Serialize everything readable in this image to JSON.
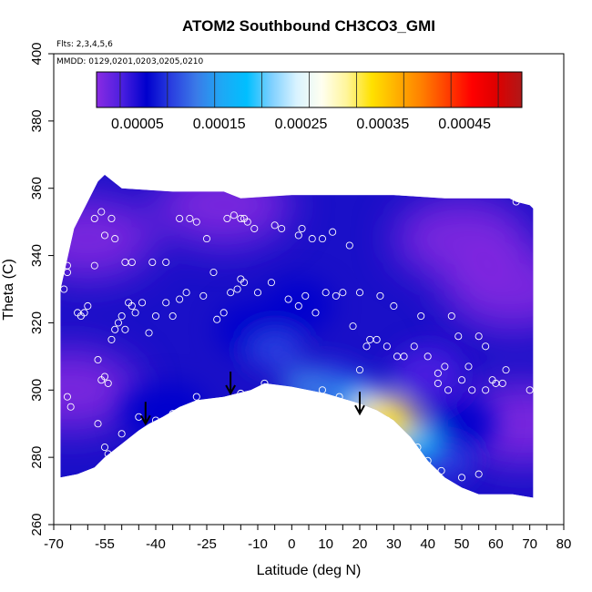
{
  "chart_data": {
    "type": "heatmap",
    "title": "ATOM2 Southbound CH3CO3_GMI",
    "annotations": {
      "flights": "Flts: 2,3,4,5,6",
      "dates": "MMDD: 0129,0201,0203,0205,0210"
    },
    "xlabel": "Latitude (deg N)",
    "ylabel": "Theta (C)",
    "xlim": [
      -70,
      80
    ],
    "ylim": [
      260,
      400
    ],
    "x_ticks": [
      -70,
      -65,
      -60,
      -55,
      -50,
      -45,
      -40,
      -35,
      -30,
      -25,
      -20,
      -15,
      -10,
      -5,
      0,
      5,
      10,
      15,
      20,
      25,
      30,
      35,
      40,
      45,
      50,
      55,
      60,
      65,
      70,
      75,
      80
    ],
    "x_tick_labels": [
      "-70",
      "-55",
      "-40",
      "-25",
      "-10",
      "0",
      "10",
      "20",
      "30",
      "40",
      "50",
      "60",
      "70",
      "80"
    ],
    "x_tick_label_values": [
      -70,
      -55,
      -40,
      -25,
      -10,
      0,
      10,
      20,
      30,
      40,
      50,
      60,
      70,
      80
    ],
    "y_ticks": [
      260,
      280,
      300,
      320,
      340,
      360,
      380,
      400
    ],
    "y_tick_labels": [
      "260",
      "280",
      "300",
      "320",
      "340",
      "360",
      "380",
      "400"
    ],
    "colorbar": {
      "min": 0,
      "max": 0.00052,
      "colors": [
        "#8a2be2",
        "#4b1fe0",
        "#0000cd",
        "#2a3fe0",
        "#3a7be8",
        "#1ea8f5",
        "#00bfff",
        "#7fd0ff",
        "#d9f3ff",
        "#fffff0",
        "#fff59a",
        "#ffe100",
        "#ffb000",
        "#ff7f00",
        "#ff4000",
        "#ff0000",
        "#dd0000",
        "#b01818"
      ],
      "tick_values": [
        5e-05,
        0.00015,
        0.00025,
        0.00035,
        0.00045
      ],
      "tick_labels": [
        "0.00005",
        "0.00015",
        "0.00025",
        "0.00035",
        "0.00045"
      ]
    },
    "field_top": [
      [
        -68,
        330
      ],
      [
        -64,
        348
      ],
      [
        -60,
        356
      ],
      [
        -57,
        362
      ],
      [
        -55,
        364
      ],
      [
        -50,
        360
      ],
      [
        -35,
        359
      ],
      [
        -20,
        359
      ],
      [
        -15,
        357
      ],
      [
        0,
        358
      ],
      [
        15,
        358
      ],
      [
        30,
        358
      ],
      [
        45,
        357
      ],
      [
        60,
        357
      ],
      [
        64,
        357
      ],
      [
        66,
        356
      ],
      [
        70,
        355
      ],
      [
        71,
        354
      ]
    ],
    "field_bottom": [
      [
        71,
        268
      ],
      [
        65,
        269
      ],
      [
        55,
        269
      ],
      [
        50,
        271
      ],
      [
        45,
        274
      ],
      [
        40,
        279
      ],
      [
        35,
        286
      ],
      [
        30,
        291
      ],
      [
        25,
        294
      ],
      [
        20,
        296
      ],
      [
        10,
        299
      ],
      [
        0,
        301
      ],
      [
        -8,
        302
      ],
      [
        -12,
        300
      ],
      [
        -20,
        298
      ],
      [
        -28,
        297
      ],
      [
        -33,
        295
      ],
      [
        -38,
        292
      ],
      [
        -42,
        290
      ],
      [
        -45,
        288
      ],
      [
        -50,
        284
      ],
      [
        -55,
        280
      ],
      [
        -58,
        277
      ],
      [
        -63,
        275
      ],
      [
        -68,
        274
      ]
    ],
    "enhancements": [
      {
        "lat": 29,
        "theta": 291,
        "value": 0.00033
      },
      {
        "lat": 26,
        "theta": 293,
        "value": 0.00026
      },
      {
        "lat": 35,
        "theta": 285,
        "value": 0.00018
      },
      {
        "lat": 20,
        "theta": 296,
        "value": 0.00015
      },
      {
        "lat": 45,
        "theta": 279,
        "value": 0.00011
      },
      {
        "lat": 5,
        "theta": 301,
        "value": 0.00014
      },
      {
        "lat": 12,
        "theta": 300,
        "value": 9e-05
      },
      {
        "lat": -5,
        "theta": 312,
        "value": 0.0001
      },
      {
        "lat": -12,
        "theta": 318,
        "value": 8e-05
      },
      {
        "lat": -40,
        "theta": 293,
        "value": 8e-05
      },
      {
        "lat": -35,
        "theta": 294,
        "value": 6e-05
      },
      {
        "lat": 2,
        "theta": 325,
        "value": 7e-05
      },
      {
        "lat": 50,
        "theta": 290,
        "value": 6e-05
      },
      {
        "lat": 40,
        "theta": 305,
        "value": 5e-05
      }
    ],
    "background_regions": [
      {
        "lat": -60,
        "theta": 345,
        "value": 2e-05
      },
      {
        "lat": -20,
        "theta": 355,
        "value": 1.5e-05
      },
      {
        "lat": 50,
        "theta": 345,
        "value": 1.5e-05
      },
      {
        "lat": 65,
        "theta": 330,
        "value": 1e-05
      },
      {
        "lat": -65,
        "theta": 300,
        "value": 1e-05
      },
      {
        "lat": 68,
        "theta": 290,
        "value": 5e-06
      }
    ],
    "arrows": [
      {
        "lat": -43,
        "theta": 290
      },
      {
        "lat": -18,
        "theta": 299
      },
      {
        "lat": 20,
        "theta": 293
      }
    ],
    "sample_points": [
      [
        -67,
        330
      ],
      [
        -66,
        335
      ],
      [
        -66,
        337
      ],
      [
        -66,
        298
      ],
      [
        -65,
        295
      ],
      [
        -63,
        323
      ],
      [
        -62,
        322
      ],
      [
        -61,
        323
      ],
      [
        -60,
        325
      ],
      [
        -58,
        351
      ],
      [
        -58,
        337
      ],
      [
        -56,
        353
      ],
      [
        -55,
        346
      ],
      [
        -53,
        351
      ],
      [
        -52,
        345
      ],
      [
        -49,
        338
      ],
      [
        -47,
        338
      ],
      [
        -41,
        338
      ],
      [
        -37,
        338
      ],
      [
        -33,
        351
      ],
      [
        -30,
        351
      ],
      [
        -28,
        350
      ],
      [
        -25,
        345
      ],
      [
        -23,
        335
      ],
      [
        -19,
        351
      ],
      [
        -17,
        352
      ],
      [
        -15,
        351
      ],
      [
        -14,
        351
      ],
      [
        -13,
        350
      ],
      [
        -11,
        348
      ],
      [
        -5,
        349
      ],
      [
        -3,
        348
      ],
      [
        2,
        346
      ],
      [
        3,
        348
      ],
      [
        6,
        345
      ],
      [
        9,
        345
      ],
      [
        12,
        347
      ],
      [
        17,
        343
      ],
      [
        -57,
        309
      ],
      [
        -55,
        304
      ],
      [
        -56,
        303
      ],
      [
        -54,
        302
      ],
      [
        -53,
        315
      ],
      [
        -52,
        318
      ],
      [
        -51,
        320
      ],
      [
        -50,
        322
      ],
      [
        -49,
        318
      ],
      [
        -48,
        326
      ],
      [
        -47,
        325
      ],
      [
        -46,
        323
      ],
      [
        -44,
        326
      ],
      [
        -42,
        317
      ],
      [
        -40,
        322
      ],
      [
        -37,
        326
      ],
      [
        -35,
        322
      ],
      [
        -33,
        327
      ],
      [
        -31,
        329
      ],
      [
        -26,
        328
      ],
      [
        -22,
        321
      ],
      [
        -20,
        323
      ],
      [
        -18,
        329
      ],
      [
        -16,
        330
      ],
      [
        -15,
        333
      ],
      [
        -14,
        332
      ],
      [
        -10,
        329
      ],
      [
        -6,
        332
      ],
      [
        -1,
        327
      ],
      [
        2,
        325
      ],
      [
        4,
        328
      ],
      [
        7,
        323
      ],
      [
        10,
        329
      ],
      [
        13,
        328
      ],
      [
        15,
        329
      ],
      [
        18,
        319
      ],
      [
        20,
        329
      ],
      [
        22,
        313
      ],
      [
        23,
        315
      ],
      [
        25,
        315
      ],
      [
        26,
        328
      ],
      [
        28,
        313
      ],
      [
        30,
        325
      ],
      [
        31,
        310
      ],
      [
        33,
        310
      ],
      [
        36,
        313
      ],
      [
        38,
        322
      ],
      [
        40,
        310
      ],
      [
        43,
        305
      ],
      [
        45,
        307
      ],
      [
        47,
        322
      ],
      [
        49,
        316
      ],
      [
        52,
        307
      ],
      [
        55,
        316
      ],
      [
        57,
        313
      ],
      [
        60,
        302
      ],
      [
        63,
        306
      ],
      [
        -57,
        290
      ],
      [
        -55,
        283
      ],
      [
        -54,
        281
      ],
      [
        -50,
        287
      ],
      [
        -45,
        292
      ],
      [
        -40,
        291
      ],
      [
        -35,
        293
      ],
      [
        -28,
        298
      ],
      [
        -15,
        299
      ],
      [
        -8,
        302
      ],
      [
        -3,
        300
      ],
      [
        2,
        299
      ],
      [
        9,
        300
      ],
      [
        14,
        298
      ],
      [
        17,
        295
      ],
      [
        20,
        294
      ],
      [
        24,
        293
      ],
      [
        28,
        291
      ],
      [
        31,
        288
      ],
      [
        34,
        285
      ],
      [
        37,
        283
      ],
      [
        40,
        279
      ],
      [
        44,
        276
      ],
      [
        50,
        274
      ],
      [
        55,
        275
      ],
      [
        57,
        300
      ],
      [
        59,
        303
      ],
      [
        62,
        302
      ],
      [
        70,
        300
      ],
      [
        43,
        302
      ],
      [
        46,
        300
      ],
      [
        50,
        303
      ],
      [
        53,
        300
      ],
      [
        20,
        306
      ],
      [
        66,
        356
      ]
    ]
  }
}
